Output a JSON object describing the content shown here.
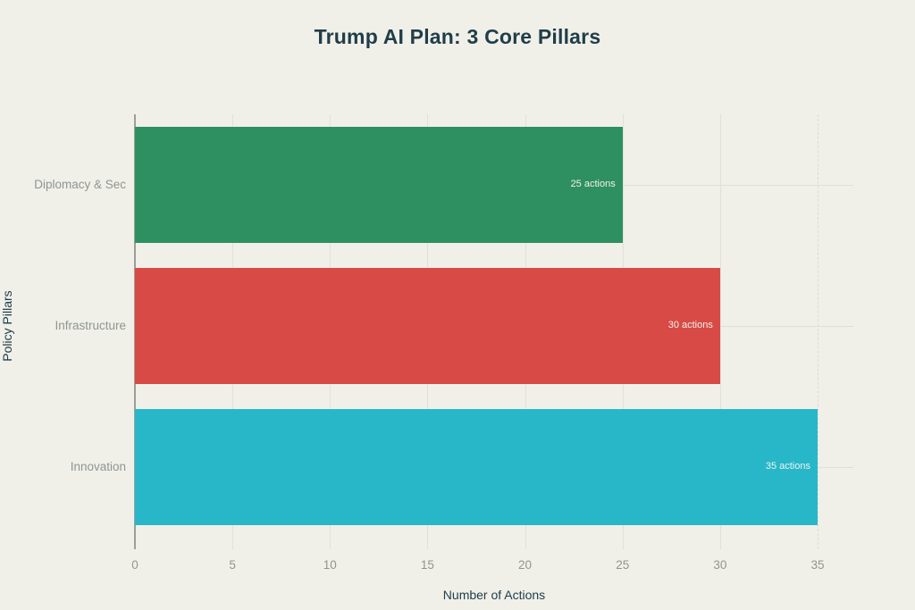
{
  "colors": {
    "background": "#f0f0e9",
    "title_text": "#203e4a",
    "axis_title_text": "#203e4a",
    "tick_label_text": "#8f9592",
    "gridline": "#e1e1da",
    "axis_line": "#9d9e99",
    "bar_label_text": "#f2f2ec"
  },
  "chart_data": {
    "type": "bar",
    "orientation": "horizontal",
    "title": "Trump AI Plan: 3 Core Pillars",
    "xlabel": "Number of Actions",
    "ylabel": "Policy Pillars",
    "categories": [
      "Diplomacy & Sec",
      "Infrastructure",
      "Innovation"
    ],
    "values": [
      25,
      30,
      35
    ],
    "bar_labels": [
      "25 actions",
      "30 actions",
      "35 actions"
    ],
    "bar_colors": [
      "#2e8f60",
      "#d74a45",
      "#27b7c9"
    ],
    "xlim": [
      0,
      35
    ],
    "xticks": [
      0,
      5,
      10,
      15,
      20,
      25,
      30,
      35
    ],
    "grid": true,
    "legend": "none"
  }
}
